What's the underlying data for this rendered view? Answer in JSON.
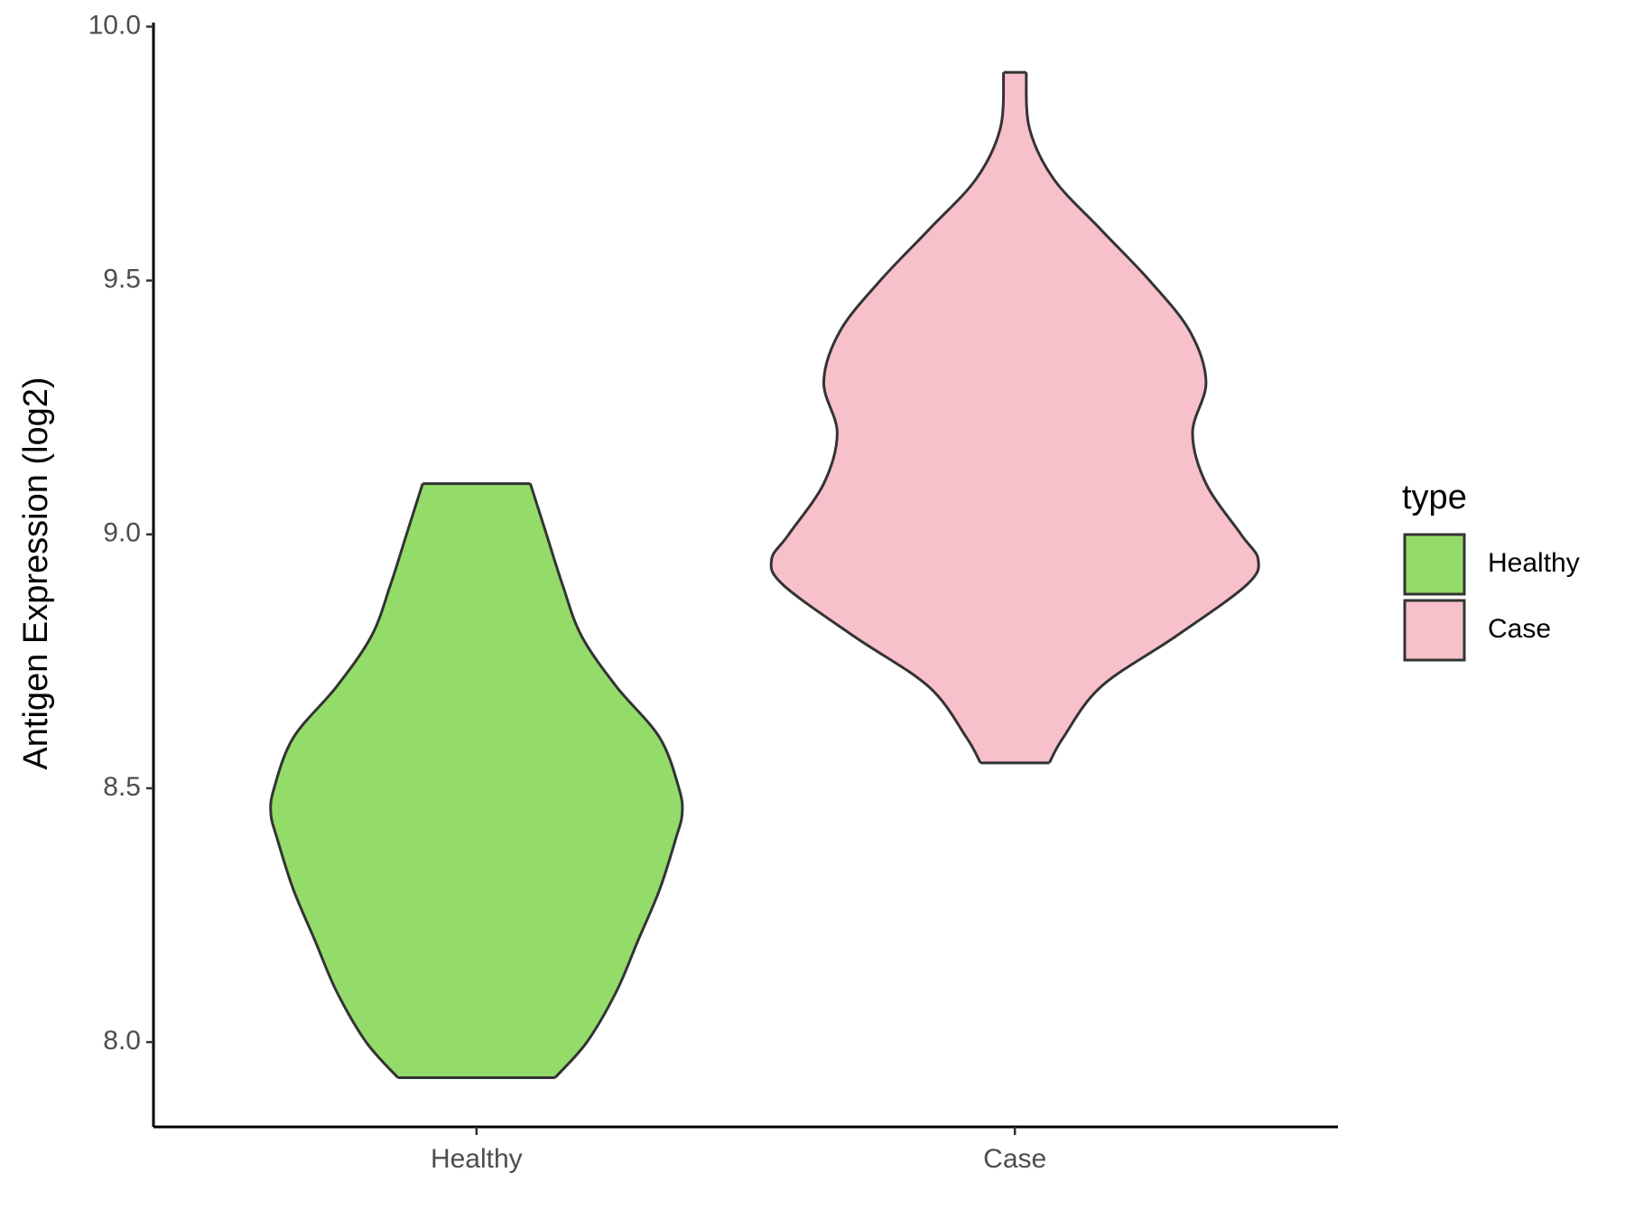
{
  "chart_data": {
    "type": "violin",
    "y_label": "Antigen Expression (log2)",
    "categories": [
      "Healthy",
      "Case"
    ],
    "legend_title": "type",
    "ylim": [
      7.833,
      10.008
    ],
    "yticks": [
      {
        "value": 8,
        "label": "8.0"
      },
      8.5,
      {
        "value": 9,
        "label": "9.0"
      },
      9.5,
      {
        "value": 10,
        "label": "10.0"
      }
    ],
    "series": [
      {
        "name": "Healthy",
        "color": "#93dc6a",
        "y": [
          9.1,
          9.0,
          8.9,
          8.8,
          8.7,
          8.6,
          8.5,
          8.45,
          8.4,
          8.3,
          8.2,
          8.1,
          8.0,
          7.93
        ],
        "half_width": [
          0.1,
          0.13,
          0.16,
          0.195,
          0.26,
          0.34,
          0.376,
          0.382,
          0.37,
          0.34,
          0.3,
          0.26,
          0.205,
          0.146
        ]
      },
      {
        "name": "Case",
        "color": "#f7c0cb",
        "y": [
          9.91,
          9.8,
          9.7,
          9.6,
          9.5,
          9.4,
          9.3,
          9.2,
          9.1,
          9.0,
          8.95,
          8.9,
          8.8,
          8.7,
          8.6,
          8.55
        ],
        "half_width": [
          0.021,
          0.027,
          0.072,
          0.16,
          0.25,
          0.325,
          0.355,
          0.33,
          0.355,
          0.42,
          0.452,
          0.43,
          0.3,
          0.16,
          0.09,
          0.064
        ]
      }
    ]
  }
}
